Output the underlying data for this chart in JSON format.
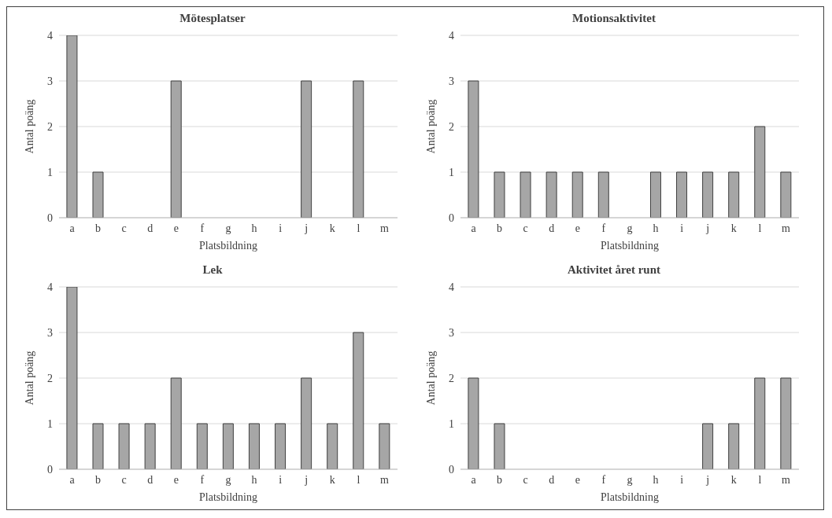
{
  "chart_data": [
    {
      "type": "bar",
      "title": "Mötesplatser",
      "xlabel": "Platsbildning",
      "ylabel": "Antal poäng",
      "categories": [
        "a",
        "b",
        "c",
        "d",
        "e",
        "f",
        "g",
        "h",
        "i",
        "j",
        "k",
        "l",
        "m"
      ],
      "values": [
        4,
        1,
        0,
        0,
        3,
        0,
        0,
        0,
        0,
        3,
        0,
        3,
        0
      ],
      "color": "#a6a6a6",
      "ylim": [
        0,
        4
      ],
      "yticks": [
        0,
        1,
        2,
        3,
        4
      ],
      "grid": "y"
    },
    {
      "type": "bar",
      "title": "Motionsaktivitet",
      "xlabel": "Platsbildning",
      "ylabel": "Antal poäng",
      "categories": [
        "a",
        "b",
        "c",
        "d",
        "e",
        "f",
        "g",
        "h",
        "i",
        "j",
        "k",
        "l",
        "m"
      ],
      "values": [
        3,
        1,
        1,
        1,
        1,
        1,
        0,
        1,
        1,
        1,
        1,
        2,
        1
      ],
      "color": "#a6a6a6",
      "ylim": [
        0,
        4
      ],
      "yticks": [
        0,
        1,
        2,
        3,
        4
      ],
      "grid": "y"
    },
    {
      "type": "bar",
      "title": "Lek",
      "xlabel": "Platsbildning",
      "ylabel": "Antal poäng",
      "categories": [
        "a",
        "b",
        "c",
        "d",
        "e",
        "f",
        "g",
        "h",
        "i",
        "j",
        "k",
        "l",
        "m"
      ],
      "values": [
        4,
        1,
        1,
        1,
        2,
        1,
        1,
        1,
        1,
        2,
        1,
        3,
        1
      ],
      "color": "#a6a6a6",
      "ylim": [
        0,
        4
      ],
      "yticks": [
        0,
        1,
        2,
        3,
        4
      ],
      "grid": "y"
    },
    {
      "type": "bar",
      "title": "Aktivitet året runt",
      "xlabel": "Platsbildning",
      "ylabel": "Antal poäng",
      "categories": [
        "a",
        "b",
        "c",
        "d",
        "e",
        "f",
        "g",
        "h",
        "i",
        "j",
        "k",
        "l",
        "m"
      ],
      "values": [
        2,
        1,
        0,
        0,
        0,
        0,
        0,
        0,
        0,
        1,
        1,
        2,
        2
      ],
      "color": "#a6a6a6",
      "ylim": [
        0,
        4
      ],
      "yticks": [
        0,
        1,
        2,
        3,
        4
      ],
      "grid": "y"
    }
  ]
}
